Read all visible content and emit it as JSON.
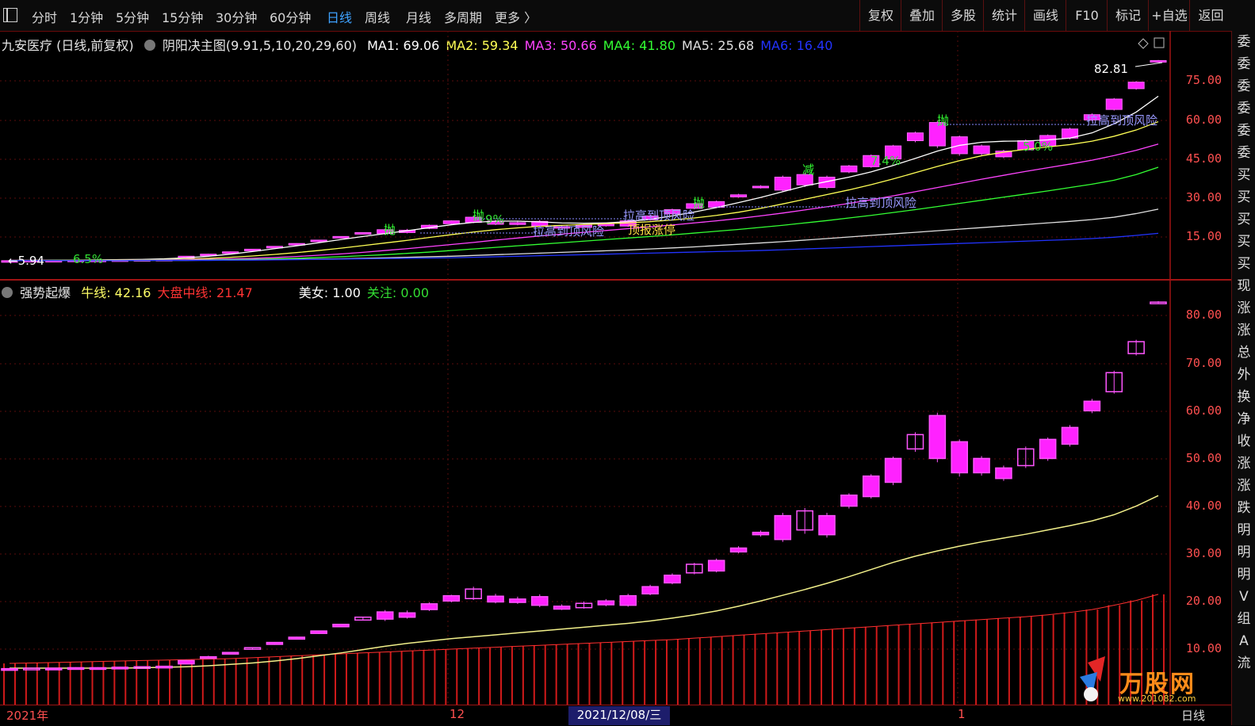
{
  "toolbar": {
    "tabs": [
      "分时",
      "1分钟",
      "5分钟",
      "15分钟",
      "30分钟",
      "60分钟",
      "日线",
      "周线",
      "月线",
      "多周期",
      "更多 〉"
    ],
    "active_tab": "日线",
    "right_buttons": [
      "复权",
      "叠加",
      "多股",
      "统计",
      "画线",
      "F10",
      "标记",
      "+自选",
      "返回"
    ]
  },
  "main_legend": {
    "stock": "九安医疗 (日线,前复权)",
    "indicator": "阴阳决主图(9.91,5,10,20,29,60)",
    "ma": [
      {
        "label": "MA1: 69.06",
        "color": "#ffffff"
      },
      {
        "label": "MA2: 59.34",
        "color": "#ffff55"
      },
      {
        "label": "MA3: 50.66",
        "color": "#ff44ff"
      },
      {
        "label": "MA4: 41.80",
        "color": "#33ff33"
      },
      {
        "label": "MA5: 25.68",
        "color": "#e0e0e0"
      },
      {
        "label": "MA6: 16.40",
        "color": "#2233ff"
      }
    ]
  },
  "sub_legend": {
    "name": "强势起爆",
    "items": [
      {
        "label": "牛线: 42.16",
        "color": "#ffff66"
      },
      {
        "label": "大盘中线: 21.47",
        "color": "#ff3333"
      },
      {
        "label": "美女: 1.00",
        "color": "#ffffff"
      },
      {
        "label": "关注: 0.00",
        "color": "#33dd33"
      }
    ]
  },
  "main_axis": [
    "75.00",
    "60.00",
    "45.00",
    "30.00",
    "15.00"
  ],
  "sub_axis": [
    "80.00",
    "70.00",
    "60.00",
    "50.00",
    "40.00",
    "30.00",
    "20.00",
    "10.00"
  ],
  "annotations": {
    "high_price": "82.81",
    "low_price": "←5.94",
    "pct_low": "6.5%",
    "risk1": "拉高到顶风险",
    "risk2": "拉高到顶风险",
    "risk3": "拉高到顶风险",
    "risk4": "拉高到顶风险",
    "limit": "顶报涨停",
    "throw": "抛",
    "reduce": "减",
    "pct_a": "9%",
    "pct_b": "7.4%",
    "pct_c": "5.0%"
  },
  "sidebar": [
    "委",
    "委",
    "委",
    "委",
    "委",
    "委",
    "买",
    "买",
    "买",
    "买",
    "买",
    "现",
    "涨",
    "涨",
    "总",
    "外",
    "换",
    "净",
    "收",
    "涨",
    "涨",
    "跌",
    "明",
    "明",
    "明",
    "V",
    "组",
    "A",
    "流"
  ],
  "bottom_axis": {
    "labels": [
      "2021年",
      "12",
      "1",
      "日线"
    ],
    "cursor_date": "2021/12/08/三"
  },
  "watermark": {
    "brand": "万股网",
    "url": "www.201082.com"
  },
  "colors": {
    "up_candle": "#ff33ff",
    "down_candle": "#66ffff",
    "axis": "#ff4040",
    "border": "#9e1313"
  },
  "chart_data": {
    "type": "candlestick",
    "ylim_main": [
      5,
      85
    ],
    "ylim_sub": [
      5,
      85
    ],
    "candles": [
      [
        5.9,
        5.9,
        6.0,
        5.9
      ],
      [
        6.0,
        6.0,
        6.1,
        6.0
      ],
      [
        6.0,
        6.0,
        6.1,
        6.0
      ],
      [
        6.1,
        6.1,
        6.2,
        6.1
      ],
      [
        6.1,
        6.1,
        6.2,
        6.1
      ],
      [
        6.2,
        6.2,
        6.3,
        6.2
      ],
      [
        6.3,
        6.3,
        6.4,
        6.3
      ],
      [
        6.3,
        6.4,
        6.5,
        6.3
      ],
      [
        6.9,
        7.6,
        7.7,
        6.9
      ],
      [
        8.1,
        8.4,
        8.6,
        8.0
      ],
      [
        9.0,
        9.3,
        9.4,
        8.9
      ],
      [
        10.0,
        10.3,
        10.4,
        9.9
      ],
      [
        11.0,
        11.4,
        11.5,
        10.9
      ],
      [
        12.1,
        12.5,
        12.6,
        12.0
      ],
      [
        13.3,
        13.8,
        13.9,
        13.2
      ],
      [
        14.7,
        15.2,
        15.3,
        14.6
      ],
      [
        16.1,
        16.7,
        16.8,
        16.0
      ],
      [
        16.3,
        17.8,
        18.2,
        15.9
      ],
      [
        16.7,
        17.6,
        18.1,
        16.4
      ],
      [
        18.3,
        19.5,
        19.8,
        18.0
      ],
      [
        20.1,
        21.2,
        21.4,
        19.8
      ],
      [
        20.6,
        22.6,
        23.1,
        20.3
      ],
      [
        19.9,
        21.1,
        21.6,
        19.6
      ],
      [
        19.8,
        20.5,
        21.0,
        19.5
      ],
      [
        19.2,
        21.0,
        21.5,
        18.8
      ],
      [
        18.4,
        19.0,
        19.4,
        18.2
      ],
      [
        18.7,
        19.6,
        20.0,
        18.5
      ],
      [
        19.3,
        20.1,
        20.5,
        19.0
      ],
      [
        19.2,
        21.2,
        21.6,
        18.9
      ],
      [
        21.6,
        23.1,
        23.5,
        21.3
      ],
      [
        23.9,
        25.5,
        25.9,
        23.6
      ],
      [
        26.0,
        27.8,
        28.1,
        25.7
      ],
      [
        26.4,
        28.6,
        29.0,
        26.1
      ],
      [
        30.4,
        31.2,
        31.6,
        30.1
      ],
      [
        34.0,
        34.5,
        34.9,
        33.6
      ],
      [
        33.0,
        38.0,
        38.6,
        32.5
      ],
      [
        35.0,
        39.0,
        39.6,
        34.2
      ],
      [
        34.0,
        38.0,
        38.6,
        33.4
      ],
      [
        40.0,
        42.3,
        42.7,
        39.5
      ],
      [
        42.0,
        46.3,
        46.7,
        41.6
      ],
      [
        45.0,
        50.0,
        50.4,
        44.4
      ],
      [
        52.0,
        55.0,
        55.5,
        51.4
      ],
      [
        50.0,
        59.0,
        59.6,
        49.2
      ],
      [
        47.0,
        53.5,
        54.0,
        46.2
      ],
      [
        47.0,
        50.0,
        50.5,
        46.4
      ],
      [
        45.8,
        48.0,
        48.5,
        45.3
      ],
      [
        48.5,
        52.0,
        52.5,
        48.0
      ],
      [
        50.0,
        54.0,
        54.4,
        49.5
      ],
      [
        53.0,
        56.5,
        57.0,
        52.5
      ],
      [
        60.0,
        62.0,
        62.5,
        59.5
      ],
      [
        64.0,
        68.0,
        68.4,
        63.6
      ],
      [
        72.0,
        74.5,
        74.9,
        71.6
      ],
      [
        82.8,
        82.8,
        83.0,
        82.6
      ]
    ],
    "series": [
      {
        "name": "MA1",
        "values": [
          6,
          6,
          6.1,
          6.1,
          6.2,
          6.3,
          6.4,
          6.6,
          7.0,
          7.6,
          8.4,
          9.4,
          10.5,
          11.6,
          12.8,
          14.0,
          15.2,
          16.3,
          17.4,
          18.6,
          19.7,
          20.6,
          21.1,
          21.1,
          20.8,
          20.4,
          20.3,
          20.4,
          20.9,
          21.8,
          23.1,
          24.6,
          26.3,
          28.2,
          30.2,
          32.4,
          34.6,
          36.3,
          38.0,
          40.0,
          42.5,
          45.2,
          48.0,
          50.2,
          51.4,
          51.8,
          51.9,
          52.3,
          53.0,
          55.0,
          58.5,
          63.0,
          69.1
        ]
      },
      {
        "name": "MA2",
        "values": [
          6,
          6,
          6,
          6.1,
          6.1,
          6.2,
          6.2,
          6.3,
          6.5,
          6.8,
          7.2,
          7.7,
          8.3,
          9.0,
          9.8,
          10.7,
          11.7,
          12.7,
          13.7,
          14.8,
          15.9,
          16.9,
          17.8,
          18.5,
          19.1,
          19.5,
          19.8,
          20.1,
          20.4,
          20.9,
          21.5,
          22.3,
          23.3,
          24.5,
          26.0,
          27.7,
          29.5,
          31.3,
          33.1,
          35.1,
          37.3,
          39.7,
          42.1,
          44.3,
          46.2,
          47.6,
          48.7,
          49.6,
          50.5,
          51.8,
          53.7,
          56.1,
          59.3
        ]
      },
      {
        "name": "MA3",
        "values": [
          6,
          6,
          6,
          6,
          6,
          6.1,
          6.1,
          6.2,
          6.3,
          6.4,
          6.6,
          6.8,
          7.1,
          7.5,
          8.0,
          8.5,
          9.1,
          9.8,
          10.5,
          11.3,
          12.1,
          12.9,
          13.8,
          14.6,
          15.4,
          16.1,
          16.8,
          17.5,
          18.2,
          18.9,
          19.6,
          20.4,
          21.2,
          22.1,
          23.1,
          24.2,
          25.4,
          26.6,
          27.9,
          29.3,
          30.8,
          32.4,
          34.0,
          35.6,
          37.2,
          38.7,
          40.2,
          41.6,
          43.0,
          44.5,
          46.3,
          48.3,
          50.7
        ]
      },
      {
        "name": "MA4",
        "values": [
          5.9,
          5.9,
          6,
          6,
          6,
          6,
          6,
          6.1,
          6.1,
          6.2,
          6.3,
          6.4,
          6.6,
          6.8,
          7.1,
          7.4,
          7.8,
          8.2,
          8.7,
          9.2,
          9.8,
          10.4,
          11.0,
          11.6,
          12.2,
          12.8,
          13.4,
          14.0,
          14.6,
          15.2,
          15.8,
          16.5,
          17.2,
          17.9,
          18.7,
          19.5,
          20.4,
          21.3,
          22.3,
          23.3,
          24.4,
          25.5,
          26.7,
          27.9,
          29.1,
          30.3,
          31.5,
          32.7,
          34.0,
          35.3,
          36.8,
          39.0,
          41.8
        ]
      },
      {
        "name": "MA5",
        "values": [
          5.9,
          5.9,
          5.9,
          6,
          6,
          6,
          6,
          6,
          6,
          6.1,
          6.1,
          6.2,
          6.3,
          6.4,
          6.5,
          6.6,
          6.8,
          7.0,
          7.2,
          7.4,
          7.6,
          7.9,
          8.2,
          8.5,
          8.8,
          9.1,
          9.4,
          9.7,
          10.0,
          10.4,
          10.8,
          11.2,
          11.7,
          12.2,
          12.7,
          13.2,
          13.8,
          14.4,
          15.0,
          15.6,
          16.2,
          16.8,
          17.4,
          18.0,
          18.6,
          19.2,
          19.8,
          20.4,
          21.0,
          21.7,
          22.6,
          24.0,
          25.7
        ]
      },
      {
        "name": "MA6",
        "values": [
          5.9,
          5.9,
          5.9,
          5.9,
          5.9,
          5.9,
          6,
          6,
          6,
          6,
          6.1,
          6.1,
          6.2,
          6.3,
          6.4,
          6.5,
          6.6,
          6.7,
          6.8,
          6.9,
          7.0,
          7.2,
          7.4,
          7.6,
          7.8,
          8.0,
          8.2,
          8.4,
          8.6,
          8.8,
          9.0,
          9.2,
          9.4,
          9.6,
          9.8,
          10.1,
          10.4,
          10.7,
          11.0,
          11.3,
          11.6,
          11.9,
          12.2,
          12.5,
          12.8,
          13.1,
          13.4,
          13.7,
          14.0,
          14.4,
          14.9,
          15.6,
          16.4
        ]
      },
      {
        "name": "牛线",
        "values": [
          6,
          6,
          6,
          6,
          6,
          6,
          6.1,
          6.2,
          6.3,
          6.5,
          6.8,
          7.1,
          7.5,
          8.0,
          8.6,
          9.2,
          9.9,
          10.6,
          11.2,
          11.7,
          12.2,
          12.6,
          13.0,
          13.4,
          13.8,
          14.2,
          14.6,
          15.0,
          15.4,
          15.9,
          16.5,
          17.2,
          18.0,
          19.0,
          20.1,
          21.3,
          22.5,
          23.8,
          25.2,
          26.7,
          28.2,
          29.5,
          30.6,
          31.6,
          32.5,
          33.3,
          34.1,
          35.0,
          35.9,
          36.9,
          38.2,
          40.0,
          42.2
        ]
      },
      {
        "name": "大盘中线",
        "values": [
          7.0,
          7.1,
          7.2,
          7.3,
          7.4,
          7.5,
          7.6,
          7.7,
          7.8,
          7.9,
          8.0,
          8.2,
          8.4,
          8.6,
          8.8,
          9.0,
          9.2,
          9.4,
          9.6,
          9.8,
          10.0,
          10.2,
          10.4,
          10.6,
          10.8,
          11.0,
          11.2,
          11.4,
          11.6,
          11.8,
          12.0,
          12.3,
          12.6,
          12.9,
          13.2,
          13.5,
          13.8,
          14.1,
          14.4,
          14.7,
          15.0,
          15.3,
          15.6,
          15.9,
          16.2,
          16.5,
          16.8,
          17.2,
          17.7,
          18.3,
          19.2,
          20.2,
          21.5
        ]
      }
    ]
  }
}
